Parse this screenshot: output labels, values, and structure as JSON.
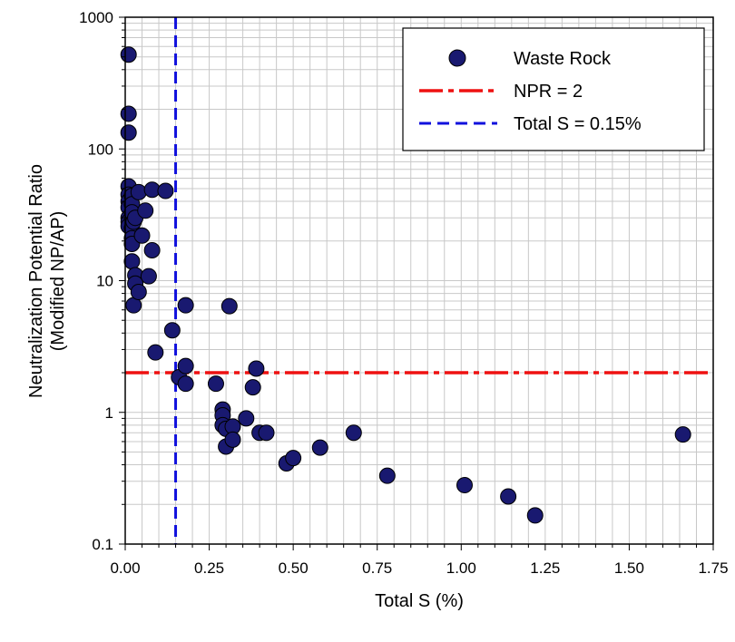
{
  "chart_data": {
    "type": "scatter",
    "xlabel": "Total S (%)",
    "ylabel": [
      "Neutralization Potential Ratio",
      "(Modified NP/AP)"
    ],
    "xlim": [
      0,
      1.75
    ],
    "ylim": [
      0.1,
      1000
    ],
    "yscale": "log",
    "grid": true,
    "legend_position": "top-right",
    "x_ticks": [
      0,
      0.25,
      0.5,
      0.75,
      1.0,
      1.25,
      1.5,
      1.75
    ],
    "x_tick_labels": [
      "0.00",
      "0.25",
      "0.50",
      "0.75",
      "1.00",
      "1.25",
      "1.50",
      "1.75"
    ],
    "y_ticks": [
      0.1,
      1,
      10,
      100,
      1000
    ],
    "y_tick_labels": [
      "0.1",
      "1",
      "10",
      "100",
      "1000"
    ],
    "series": [
      {
        "name": "Waste Rock",
        "color": "#191970",
        "points": [
          [
            0.01,
            520
          ],
          [
            0.01,
            185
          ],
          [
            0.01,
            133
          ],
          [
            0.01,
            52
          ],
          [
            0.01,
            45
          ],
          [
            0.01,
            40
          ],
          [
            0.01,
            36
          ],
          [
            0.01,
            30
          ],
          [
            0.01,
            28
          ],
          [
            0.01,
            26
          ],
          [
            0.02,
            44
          ],
          [
            0.02,
            38
          ],
          [
            0.02,
            33
          ],
          [
            0.02,
            25
          ],
          [
            0.02,
            21
          ],
          [
            0.02,
            19
          ],
          [
            0.02,
            14
          ],
          [
            0.025,
            28
          ],
          [
            0.03,
            30
          ],
          [
            0.03,
            11
          ],
          [
            0.025,
            6.5
          ],
          [
            0.03,
            9.5
          ],
          [
            0.04,
            47
          ],
          [
            0.04,
            8.2
          ],
          [
            0.05,
            22
          ],
          [
            0.06,
            34
          ],
          [
            0.07,
            10.8
          ],
          [
            0.08,
            49
          ],
          [
            0.08,
            17
          ],
          [
            0.12,
            48
          ],
          [
            0.09,
            2.85
          ],
          [
            0.14,
            4.2
          ],
          [
            0.16,
            1.85
          ],
          [
            0.18,
            6.5
          ],
          [
            0.18,
            2.25
          ],
          [
            0.18,
            1.65
          ],
          [
            0.27,
            1.65
          ],
          [
            0.29,
            1.05
          ],
          [
            0.29,
            0.95
          ],
          [
            0.29,
            0.8
          ],
          [
            0.3,
            0.75
          ],
          [
            0.3,
            0.55
          ],
          [
            0.31,
            6.4
          ],
          [
            0.32,
            0.78
          ],
          [
            0.32,
            0.62
          ],
          [
            0.36,
            0.9
          ],
          [
            0.38,
            1.55
          ],
          [
            0.39,
            2.15
          ],
          [
            0.4,
            0.7
          ],
          [
            0.42,
            0.7
          ],
          [
            0.48,
            0.41
          ],
          [
            0.5,
            0.45
          ],
          [
            0.58,
            0.54
          ],
          [
            0.68,
            0.7
          ],
          [
            0.78,
            0.33
          ],
          [
            1.01,
            0.28
          ],
          [
            1.14,
            0.23
          ],
          [
            1.22,
            0.165
          ],
          [
            1.66,
            0.68
          ]
        ]
      }
    ],
    "reference_lines": [
      {
        "name": "NPR = 2",
        "orientation": "horizontal",
        "value": 2,
        "color": "#ee1111",
        "style": "dash-dot"
      },
      {
        "name": "Total S = 0.15%",
        "orientation": "vertical",
        "value": 0.15,
        "color": "#1111dd",
        "style": "dashed"
      }
    ],
    "legend": [
      {
        "label": "Waste Rock",
        "kind": "marker"
      },
      {
        "label": "NPR = 2",
        "kind": "red-dash-line"
      },
      {
        "label": "Total S = 0.15%",
        "kind": "blue-dash-line"
      }
    ]
  }
}
